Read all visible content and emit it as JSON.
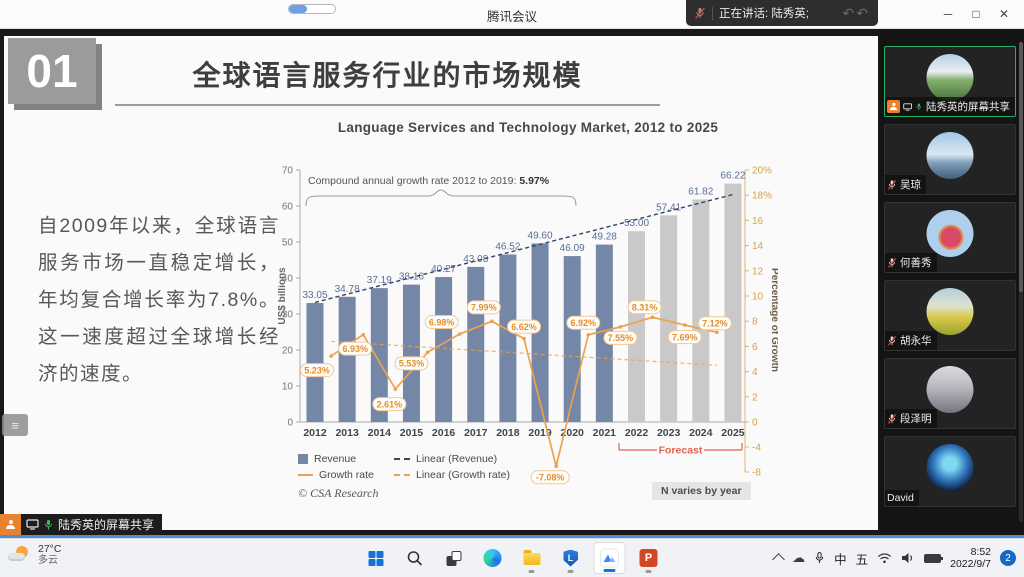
{
  "titlebar": {
    "title": "腾讯会议",
    "speaking": "正在讲话: 陆秀英;",
    "minimize": "─",
    "maximize": "□",
    "close": "✕",
    "arrows": "↶↶"
  },
  "slide": {
    "section_number": "01",
    "title": "全球语言服务行业的市场规模",
    "paragraph": "自2009年以来，全球语言服务市场一直稳定增长，年均复合增长率为7.8%。这一速度超过全球增长经济的速度。"
  },
  "chart_data": {
    "type": "bar+line",
    "title": "Language Services and Technology Market, 2012 to 2025",
    "annotation": "Compound annual growth rate 2012 to 2019:",
    "annotation_value": "5.97%",
    "ylabel_left": "US$ billions",
    "ylabel_right": "Percentage of Growth",
    "categories": [
      2012,
      2013,
      2014,
      2015,
      2016,
      2017,
      2018,
      2019,
      2020,
      2021,
      2022,
      2023,
      2024,
      2025
    ],
    "series": [
      {
        "name": "Revenue",
        "type": "bar",
        "values": [
          33.05,
          34.78,
          37.19,
          38.16,
          40.27,
          43.08,
          46.52,
          49.6,
          46.09,
          49.28,
          53.0,
          57.41,
          61.82,
          66.22
        ],
        "labels": [
          "33.05",
          "34.78",
          "37.19",
          "38.16",
          "40.27",
          "43.08",
          "46.52",
          "49.60",
          "46.09",
          "49.28",
          "53.00",
          "57.41",
          "61.82",
          "66.22"
        ],
        "forecast_start_index": 10
      },
      {
        "name": "Growth rate",
        "type": "line",
        "x": [
          2012.5,
          2013.5,
          2014.5,
          2015.5,
          2016.5,
          2017.5,
          2018.5,
          2019.5,
          2020.5,
          2021.5,
          2022.5,
          2023.5,
          2024.5
        ],
        "values": [
          5.23,
          6.93,
          2.61,
          5.53,
          6.98,
          7.99,
          6.62,
          -7.08,
          6.92,
          7.55,
          8.31,
          7.69,
          7.12
        ],
        "labels": [
          "5.23%",
          "6.93%",
          "2.61%",
          "5.53%",
          "6.98%",
          "7.99%",
          "6.62%",
          "-7.08%",
          "6.92%",
          "7.55%",
          "8.31%",
          "7.69%",
          "7.12%"
        ],
        "label_offsets": [
          [
            -14,
            14
          ],
          [
            -8,
            14
          ],
          [
            -6,
            15
          ],
          [
            -16,
            11
          ],
          [
            -18,
            -12
          ],
          [
            -8,
            -14
          ],
          [
            0,
            -12
          ],
          [
            -6,
            11
          ],
          [
            -5,
            -12
          ],
          [
            0,
            11
          ],
          [
            -8,
            -10
          ],
          [
            0,
            12
          ],
          [
            -2,
            -9
          ]
        ]
      }
    ],
    "trend_lines": {
      "revenue": {
        "name": "Linear (Revenue)",
        "x": [
          2012,
          2025
        ],
        "values": [
          33.2,
          63.2
        ]
      },
      "growth": {
        "name": "Linear (Growth rate)",
        "x": [
          2012.5,
          2024.5
        ],
        "values": [
          6.4,
          4.5
        ]
      }
    },
    "left_axis_ticks": [
      0,
      10,
      20,
      30,
      40,
      50,
      60,
      70
    ],
    "right_tick_values": [
      20,
      18,
      16,
      14,
      12,
      10,
      8,
      6,
      4,
      2,
      0,
      -4,
      -8
    ],
    "right_tick_labels": [
      "20%",
      "18%",
      "16",
      "14",
      "12",
      "10",
      "8",
      "6",
      "4",
      "2",
      "0",
      "-4",
      "-8"
    ],
    "ylim_left": [
      0,
      70
    ],
    "legend": [
      "Revenue",
      "Growth rate",
      "Linear (Revenue)",
      "Linear (Growth rate)"
    ],
    "forecast_label": "Forecast",
    "source": "© CSA Research",
    "note": "N varies by year",
    "colors": {
      "bar": "#7487a7",
      "bar_forecast": "#c9c9c9",
      "line": "#eda14f",
      "pill_text": "#df8e33",
      "pill_border": "#f3c896",
      "trend_revenue": "#3a4166",
      "right_axis": "#d9a04a",
      "forecast": "#e0654e"
    }
  },
  "share_banner": {
    "label": "陆秀英的屏幕共享"
  },
  "participants": [
    {
      "name": "陆秀英的屏幕共享",
      "mic": "on",
      "sharing": true,
      "active": true
    },
    {
      "name": "吴琼",
      "mic": "muted"
    },
    {
      "name": "何善秀",
      "mic": "muted"
    },
    {
      "name": "胡永华",
      "mic": "muted"
    },
    {
      "name": "段泽明",
      "mic": "muted"
    },
    {
      "name": "David",
      "mic": "none"
    }
  ],
  "taskbar": {
    "weather": {
      "temp": "27°C",
      "condition": "多云"
    },
    "shield_letter": "L",
    "ppt_letter": "P",
    "ime_lang": "中",
    "ime_mode": "五",
    "time": "8:52",
    "date": "2022/9/7",
    "badge": "2"
  }
}
